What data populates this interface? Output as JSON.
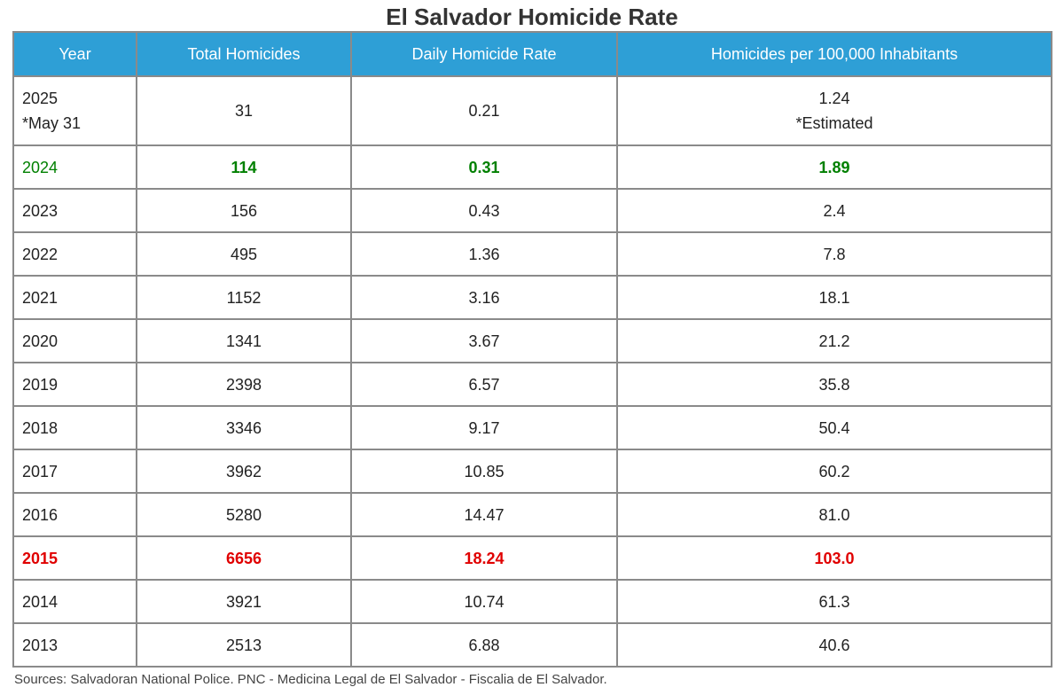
{
  "chart_data": {
    "type": "table",
    "title": "El Salvador Homicide Rate",
    "columns": [
      "Year",
      "Total Homicides",
      "Daily Homicide Rate",
      "Homicides per 100,000 Inhabitants"
    ],
    "rows": [
      {
        "year": "2025",
        "year_note": "*May 31",
        "total": "31",
        "daily": "0.21",
        "per100k": "1.24",
        "per100k_note": "*Estimated"
      },
      {
        "year": "2024",
        "total": "114",
        "daily": "0.31",
        "per100k": "1.89",
        "highlight": "green"
      },
      {
        "year": "2023",
        "total": "156",
        "daily": "0.43",
        "per100k": "2.4"
      },
      {
        "year": "2022",
        "total": "495",
        "daily": "1.36",
        "per100k": "7.8"
      },
      {
        "year": "2021",
        "total": "1152",
        "daily": "3.16",
        "per100k": "18.1"
      },
      {
        "year": "2020",
        "total": "1341",
        "daily": "3.67",
        "per100k": "21.2"
      },
      {
        "year": "2019",
        "total": "2398",
        "daily": "6.57",
        "per100k": "35.8"
      },
      {
        "year": "2018",
        "total": "3346",
        "daily": "9.17",
        "per100k": "50.4"
      },
      {
        "year": "2017",
        "total": "3962",
        "daily": "10.85",
        "per100k": "60.2"
      },
      {
        "year": "2016",
        "total": "5280",
        "daily": "14.47",
        "per100k": "81.0"
      },
      {
        "year": "2015",
        "total": "6656",
        "daily": "18.24",
        "per100k": "103.0",
        "highlight": "red"
      },
      {
        "year": "2014",
        "total": "3921",
        "daily": "10.74",
        "per100k": "61.3"
      },
      {
        "year": "2013",
        "total": "2513",
        "daily": "6.88",
        "per100k": "40.6"
      }
    ],
    "source": "Sources: Salvadoran National Police. PNC - Medicina Legal de El Salvador - Fiscalia de El Salvador."
  },
  "colors": {
    "header_bg": "#2e9fd6",
    "highlight_green": "#008000",
    "highlight_red": "#e00000",
    "border": "#8a8a8a"
  }
}
